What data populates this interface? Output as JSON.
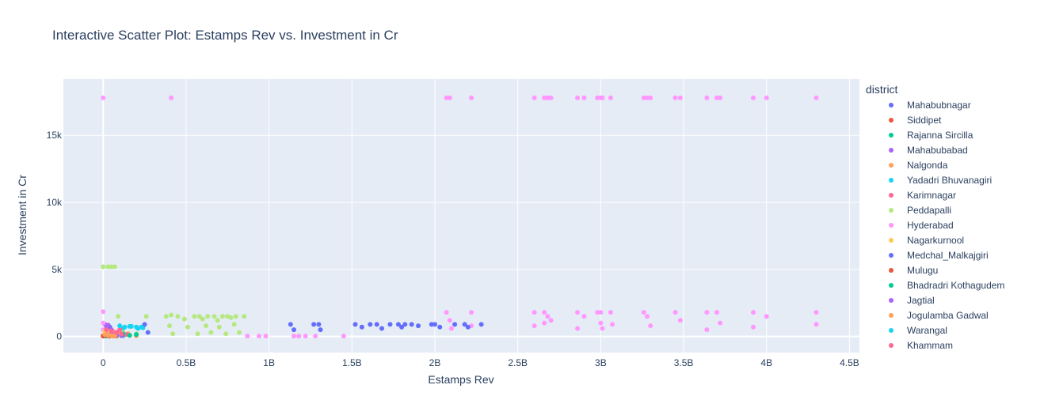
{
  "chart_data": {
    "type": "scatter",
    "title": "Interactive Scatter Plot: Estamps Rev vs. Investment in Cr",
    "xlabel": "Estamps Rev",
    "ylabel": "Investment in Cr",
    "xlim": [
      -0.24,
      4.56
    ],
    "ylim": [
      -1200,
      19200
    ],
    "x_unit": "B",
    "x_ticks": [
      0,
      0.5,
      1,
      1.5,
      2,
      2.5,
      3,
      3.5,
      4,
      4.5
    ],
    "x_tick_labels": [
      "0",
      "0.5B",
      "1B",
      "1.5B",
      "2B",
      "2.5B",
      "3B",
      "3.5B",
      "4B",
      "4.5B"
    ],
    "y_ticks": [
      0,
      5000,
      10000,
      15000
    ],
    "y_tick_labels": [
      "0",
      "5k",
      "10k",
      "15k"
    ],
    "grid": true,
    "legend_title": "district",
    "legend_position": "right",
    "series": [
      {
        "name": "Mahabubnagar",
        "color": "#636efa",
        "points": [
          [
            0.01,
            50
          ],
          [
            0.03,
            120
          ],
          [
            0.05,
            300
          ],
          [
            0.07,
            80
          ],
          [
            0.04,
            700
          ]
        ]
      },
      {
        "name": "Siddipet",
        "color": "#EF553B",
        "points": [
          [
            0.0,
            20
          ],
          [
            0.02,
            60
          ],
          [
            0.04,
            100
          ],
          [
            0.06,
            40
          ],
          [
            0.08,
            150
          ]
        ]
      },
      {
        "name": "Rajanna Sircilla",
        "color": "#00cc96",
        "points": [
          [
            0.02,
            30
          ],
          [
            0.05,
            90
          ],
          [
            0.08,
            200
          ],
          [
            0.12,
            60
          ]
        ]
      },
      {
        "name": "Mahabubabad",
        "color": "#ab63fa",
        "points": [
          [
            0.01,
            900
          ],
          [
            0.03,
            850
          ],
          [
            0.05,
            500
          ],
          [
            0.07,
            200
          ]
        ]
      },
      {
        "name": "Nalgonda",
        "color": "#FFA15A",
        "points": [
          [
            0.05,
            100
          ],
          [
            0.1,
            300
          ],
          [
            0.15,
            200
          ],
          [
            0.2,
            50
          ]
        ]
      },
      {
        "name": "Yadadri Bhuvanagiri",
        "color": "#19d3f3",
        "points": [
          [
            0.12,
            600
          ],
          [
            0.16,
            750
          ],
          [
            0.2,
            700
          ],
          [
            0.24,
            650
          ]
        ]
      },
      {
        "name": "Karimnagar",
        "color": "#FF6692",
        "points": [
          [
            0.02,
            200
          ],
          [
            0.06,
            350
          ],
          [
            0.1,
            500
          ],
          [
            0.14,
            150
          ]
        ]
      },
      {
        "name": "Peddapalli",
        "color": "#B6E880",
        "points": [
          [
            0.0,
            5200
          ],
          [
            0.03,
            5200
          ],
          [
            0.05,
            5200
          ],
          [
            0.07,
            5200
          ],
          [
            0.09,
            1500
          ],
          [
            0.12,
            300
          ],
          [
            0.2,
            200
          ],
          [
            0.26,
            1500
          ],
          [
            0.38,
            1500
          ],
          [
            0.4,
            800
          ],
          [
            0.41,
            1600
          ],
          [
            0.42,
            200
          ],
          [
            0.45,
            1500
          ],
          [
            0.49,
            1300
          ],
          [
            0.51,
            700
          ],
          [
            0.55,
            1500
          ],
          [
            0.57,
            200
          ],
          [
            0.58,
            1500
          ],
          [
            0.6,
            1300
          ],
          [
            0.62,
            800
          ],
          [
            0.63,
            1500
          ],
          [
            0.65,
            300
          ],
          [
            0.67,
            1500
          ],
          [
            0.69,
            1200
          ],
          [
            0.7,
            700
          ],
          [
            0.72,
            1500
          ],
          [
            0.74,
            200
          ],
          [
            0.75,
            1500
          ],
          [
            0.77,
            1400
          ],
          [
            0.79,
            900
          ],
          [
            0.8,
            1500
          ],
          [
            0.82,
            300
          ],
          [
            0.85,
            1500
          ]
        ]
      },
      {
        "name": "Hyderabad",
        "color": "#FF97FF",
        "points": [
          [
            0.0,
            17800
          ],
          [
            0.41,
            17800
          ],
          [
            0.0,
            1850
          ],
          [
            0.0,
            1000
          ],
          [
            0.0,
            500
          ],
          [
            0.87,
            30
          ],
          [
            0.94,
            30
          ],
          [
            0.98,
            30
          ],
          [
            1.15,
            30
          ],
          [
            1.18,
            30
          ],
          [
            1.22,
            30
          ],
          [
            1.28,
            30
          ],
          [
            1.45,
            30
          ],
          [
            2.07,
            17800
          ],
          [
            2.09,
            17800
          ],
          [
            2.07,
            1800
          ],
          [
            2.09,
            1200
          ],
          [
            2.1,
            600
          ],
          [
            2.22,
            17800
          ],
          [
            2.22,
            1800
          ],
          [
            2.22,
            800
          ],
          [
            2.6,
            17800
          ],
          [
            2.6,
            1800
          ],
          [
            2.6,
            800
          ],
          [
            2.66,
            17800
          ],
          [
            2.66,
            1800
          ],
          [
            2.66,
            1000
          ],
          [
            2.68,
            17800
          ],
          [
            2.68,
            1500
          ],
          [
            2.7,
            17800
          ],
          [
            2.7,
            1200
          ],
          [
            2.86,
            17800
          ],
          [
            2.86,
            1800
          ],
          [
            2.86,
            600
          ],
          [
            2.9,
            17800
          ],
          [
            2.9,
            1500
          ],
          [
            2.98,
            17800
          ],
          [
            2.98,
            1800
          ],
          [
            3.0,
            17800
          ],
          [
            3.0,
            1800
          ],
          [
            3.0,
            1000
          ],
          [
            3.01,
            17800
          ],
          [
            3.01,
            600
          ],
          [
            3.06,
            17800
          ],
          [
            3.06,
            1800
          ],
          [
            3.07,
            900
          ],
          [
            3.26,
            17800
          ],
          [
            3.26,
            1800
          ],
          [
            3.28,
            17800
          ],
          [
            3.28,
            1500
          ],
          [
            3.3,
            17800
          ],
          [
            3.3,
            800
          ],
          [
            3.45,
            17800
          ],
          [
            3.45,
            1800
          ],
          [
            3.48,
            17800
          ],
          [
            3.48,
            1200
          ],
          [
            3.64,
            17800
          ],
          [
            3.64,
            1800
          ],
          [
            3.64,
            500
          ],
          [
            3.7,
            17800
          ],
          [
            3.7,
            1800
          ],
          [
            3.72,
            17800
          ],
          [
            3.72,
            1000
          ],
          [
            3.92,
            17800
          ],
          [
            3.92,
            1800
          ],
          [
            3.92,
            700
          ],
          [
            4.0,
            17800
          ],
          [
            4.0,
            1500
          ],
          [
            4.3,
            17800
          ],
          [
            4.3,
            1800
          ],
          [
            4.3,
            900
          ]
        ]
      },
      {
        "name": "Nagarkurnool",
        "color": "#FECB52",
        "points": [
          [
            0.01,
            400
          ],
          [
            0.04,
            350
          ],
          [
            0.06,
            250
          ],
          [
            0.09,
            150
          ]
        ]
      },
      {
        "name": "Medchal_Malkajgiri",
        "color": "#636efa",
        "points": [
          [
            0.25,
            900
          ],
          [
            0.27,
            300
          ],
          [
            1.13,
            900
          ],
          [
            1.15,
            500
          ],
          [
            1.27,
            900
          ],
          [
            1.3,
            900
          ],
          [
            1.31,
            500
          ],
          [
            1.52,
            900
          ],
          [
            1.56,
            700
          ],
          [
            1.61,
            900
          ],
          [
            1.65,
            900
          ],
          [
            1.68,
            600
          ],
          [
            1.73,
            900
          ],
          [
            1.78,
            900
          ],
          [
            1.8,
            700
          ],
          [
            1.82,
            900
          ],
          [
            1.86,
            900
          ],
          [
            1.9,
            800
          ],
          [
            1.98,
            900
          ],
          [
            2.0,
            900
          ],
          [
            2.03,
            700
          ],
          [
            2.12,
            900
          ],
          [
            2.18,
            900
          ],
          [
            2.2,
            700
          ],
          [
            2.28,
            900
          ]
        ]
      },
      {
        "name": "Mulugu",
        "color": "#EF553B",
        "points": [
          [
            0.0,
            50
          ],
          [
            0.02,
            100
          ],
          [
            0.04,
            20
          ],
          [
            0.06,
            70
          ],
          [
            0.08,
            30
          ]
        ]
      },
      {
        "name": "Bhadradri Kothagudem",
        "color": "#00cc96",
        "points": [
          [
            0.08,
            100
          ],
          [
            0.12,
            200
          ],
          [
            0.16,
            80
          ],
          [
            0.2,
            150
          ]
        ]
      },
      {
        "name": "Jagtial",
        "color": "#ab63fa",
        "points": [
          [
            0.02,
            600
          ],
          [
            0.05,
            300
          ],
          [
            0.08,
            150
          ],
          [
            0.11,
            50
          ]
        ]
      },
      {
        "name": "Jogulamba Gadwal",
        "color": "#FFA15A",
        "points": [
          [
            0.01,
            150
          ],
          [
            0.03,
            100
          ],
          [
            0.05,
            60
          ],
          [
            0.07,
            40
          ]
        ]
      },
      {
        "name": "Warangal",
        "color": "#19d3f3",
        "points": [
          [
            0.1,
            800
          ],
          [
            0.13,
            700
          ],
          [
            0.17,
            750
          ],
          [
            0.21,
            600
          ],
          [
            0.23,
            700
          ]
        ]
      },
      {
        "name": "Khammam",
        "color": "#FF6692",
        "points": [
          [
            0.02,
            500
          ],
          [
            0.05,
            400
          ],
          [
            0.08,
            300
          ],
          [
            0.11,
            200
          ]
        ]
      }
    ]
  }
}
